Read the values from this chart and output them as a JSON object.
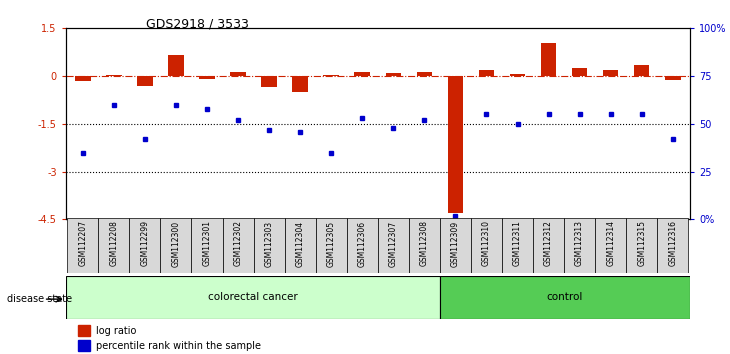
{
  "title": "GDS2918 / 3533",
  "samples": [
    "GSM112207",
    "GSM112208",
    "GSM112299",
    "GSM112300",
    "GSM112301",
    "GSM112302",
    "GSM112303",
    "GSM112304",
    "GSM112305",
    "GSM112306",
    "GSM112307",
    "GSM112308",
    "GSM112309",
    "GSM112310",
    "GSM112311",
    "GSM112312",
    "GSM112313",
    "GSM112314",
    "GSM112315",
    "GSM112316"
  ],
  "log_ratio": [
    -0.15,
    0.05,
    -0.3,
    0.65,
    -0.1,
    0.12,
    -0.35,
    -0.5,
    0.05,
    0.12,
    0.1,
    0.12,
    -4.3,
    0.18,
    0.07,
    1.05,
    0.25,
    0.2,
    0.35,
    -0.12
  ],
  "percentile_rank": [
    35,
    60,
    42,
    60,
    58,
    52,
    47,
    46,
    35,
    53,
    48,
    52,
    2,
    55,
    50,
    55,
    55,
    55,
    55,
    42
  ],
  "colorectal_count": 12,
  "control_count": 8,
  "ylim_left": [
    -4.5,
    1.5
  ],
  "yticks_left": [
    1.5,
    0,
    -1.5,
    -3,
    -4.5
  ],
  "ytick_labels_left": [
    "1.5",
    "0",
    "-1.5",
    "-3",
    "-4.5"
  ],
  "yticks_right": [
    100,
    75,
    50,
    25,
    0
  ],
  "ytick_labels_right": [
    "100%",
    "75",
    "50",
    "25",
    "0%"
  ],
  "dotted_lines": [
    -1.5,
    -3.0
  ],
  "bar_color": "#cc2200",
  "dot_color": "#0000cc",
  "bg_colorectal": "#ccffcc",
  "bg_control": "#55cc55",
  "label_colorectal": "colorectal cancer",
  "label_control": "control",
  "legend_log_ratio": "log ratio",
  "legend_percentile": "percentile rank within the sample",
  "disease_state_label": "disease state"
}
